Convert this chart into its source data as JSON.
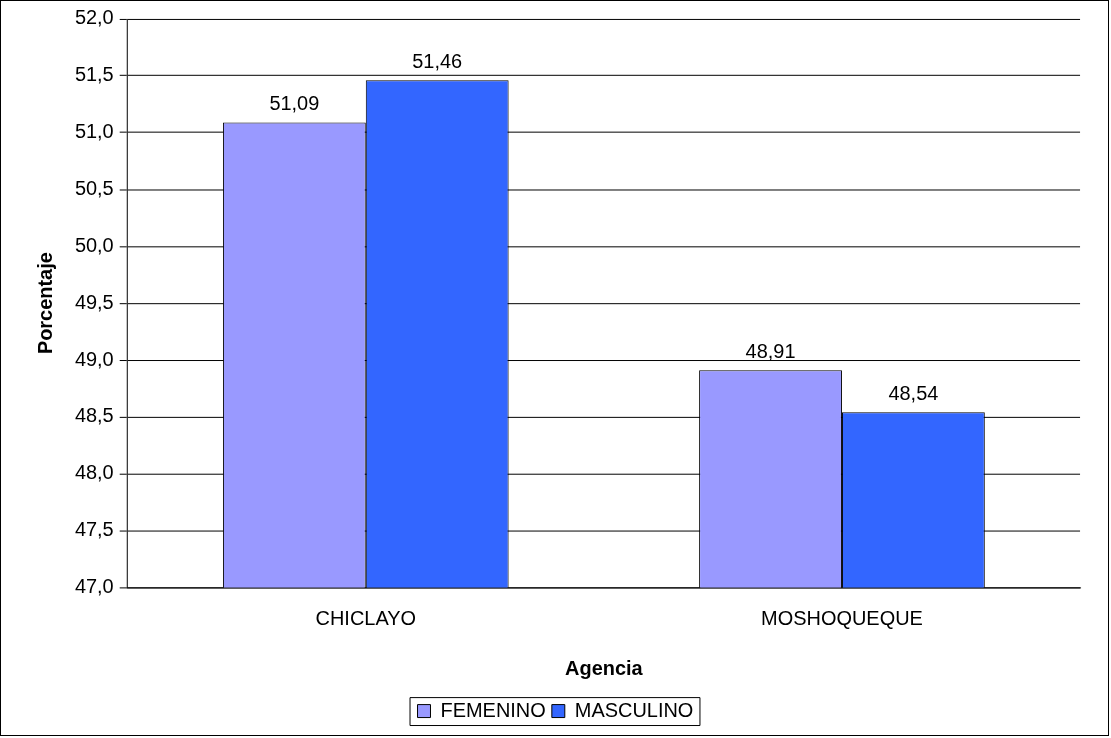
{
  "chart_data": {
    "type": "bar",
    "xlabel": "Agencia",
    "ylabel": "Porcentaje",
    "categories": [
      "CHICLAYO",
      "MOSHOQUEQUE"
    ],
    "series": [
      {
        "name": "FEMENINO",
        "color": "#9999ff",
        "values": [
          51.09,
          48.91
        ],
        "value_labels": [
          "51,09",
          "48,91"
        ]
      },
      {
        "name": "MASCULINO",
        "color": "#3366ff",
        "values": [
          51.46,
          48.54
        ],
        "value_labels": [
          "51,46",
          "48,54"
        ]
      }
    ],
    "ylim": [
      47,
      52
    ],
    "yticks": [
      {
        "value": 47,
        "label": "47,0"
      },
      {
        "value": 47.5,
        "label": "47,5"
      },
      {
        "value": 48,
        "label": "48,0"
      },
      {
        "value": 48.5,
        "label": "48,5"
      },
      {
        "value": 49,
        "label": "49,0"
      },
      {
        "value": 49.5,
        "label": "49,5"
      },
      {
        "value": 50,
        "label": "50,0"
      },
      {
        "value": 50.5,
        "label": "50,5"
      },
      {
        "value": 51,
        "label": "51,0"
      },
      {
        "value": 51.5,
        "label": "51,5"
      },
      {
        "value": 52,
        "label": "52,0"
      }
    ],
    "grid": "y",
    "legend": "bottom"
  }
}
